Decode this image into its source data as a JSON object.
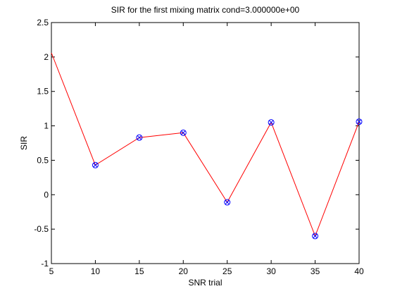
{
  "chart_data": {
    "type": "line",
    "title": "SIR for the first mixing matrix cond=3.000000e+00",
    "xlabel": "SNR trial",
    "ylabel": "SIR",
    "xlim": [
      5,
      40
    ],
    "ylim": [
      -1,
      2.5
    ],
    "xticks": [
      "5",
      "10",
      "15",
      "20",
      "25",
      "30",
      "35",
      "40"
    ],
    "yticks": [
      "-1",
      "-0.5",
      "0",
      "0.5",
      "1",
      "1.5",
      "2",
      "2.5"
    ],
    "grid": false,
    "legend": "none",
    "series": [
      {
        "x": [
          5,
          10,
          15,
          20,
          25,
          30,
          35,
          40
        ],
        "y": [
          2.06,
          0.43,
          0.83,
          0.9,
          -0.11,
          1.05,
          -0.6,
          1.06
        ],
        "line_color": "#ff0000",
        "marker_color": "#0000ff",
        "markers": "circle-x",
        "first_point_marker": false
      }
    ]
  }
}
